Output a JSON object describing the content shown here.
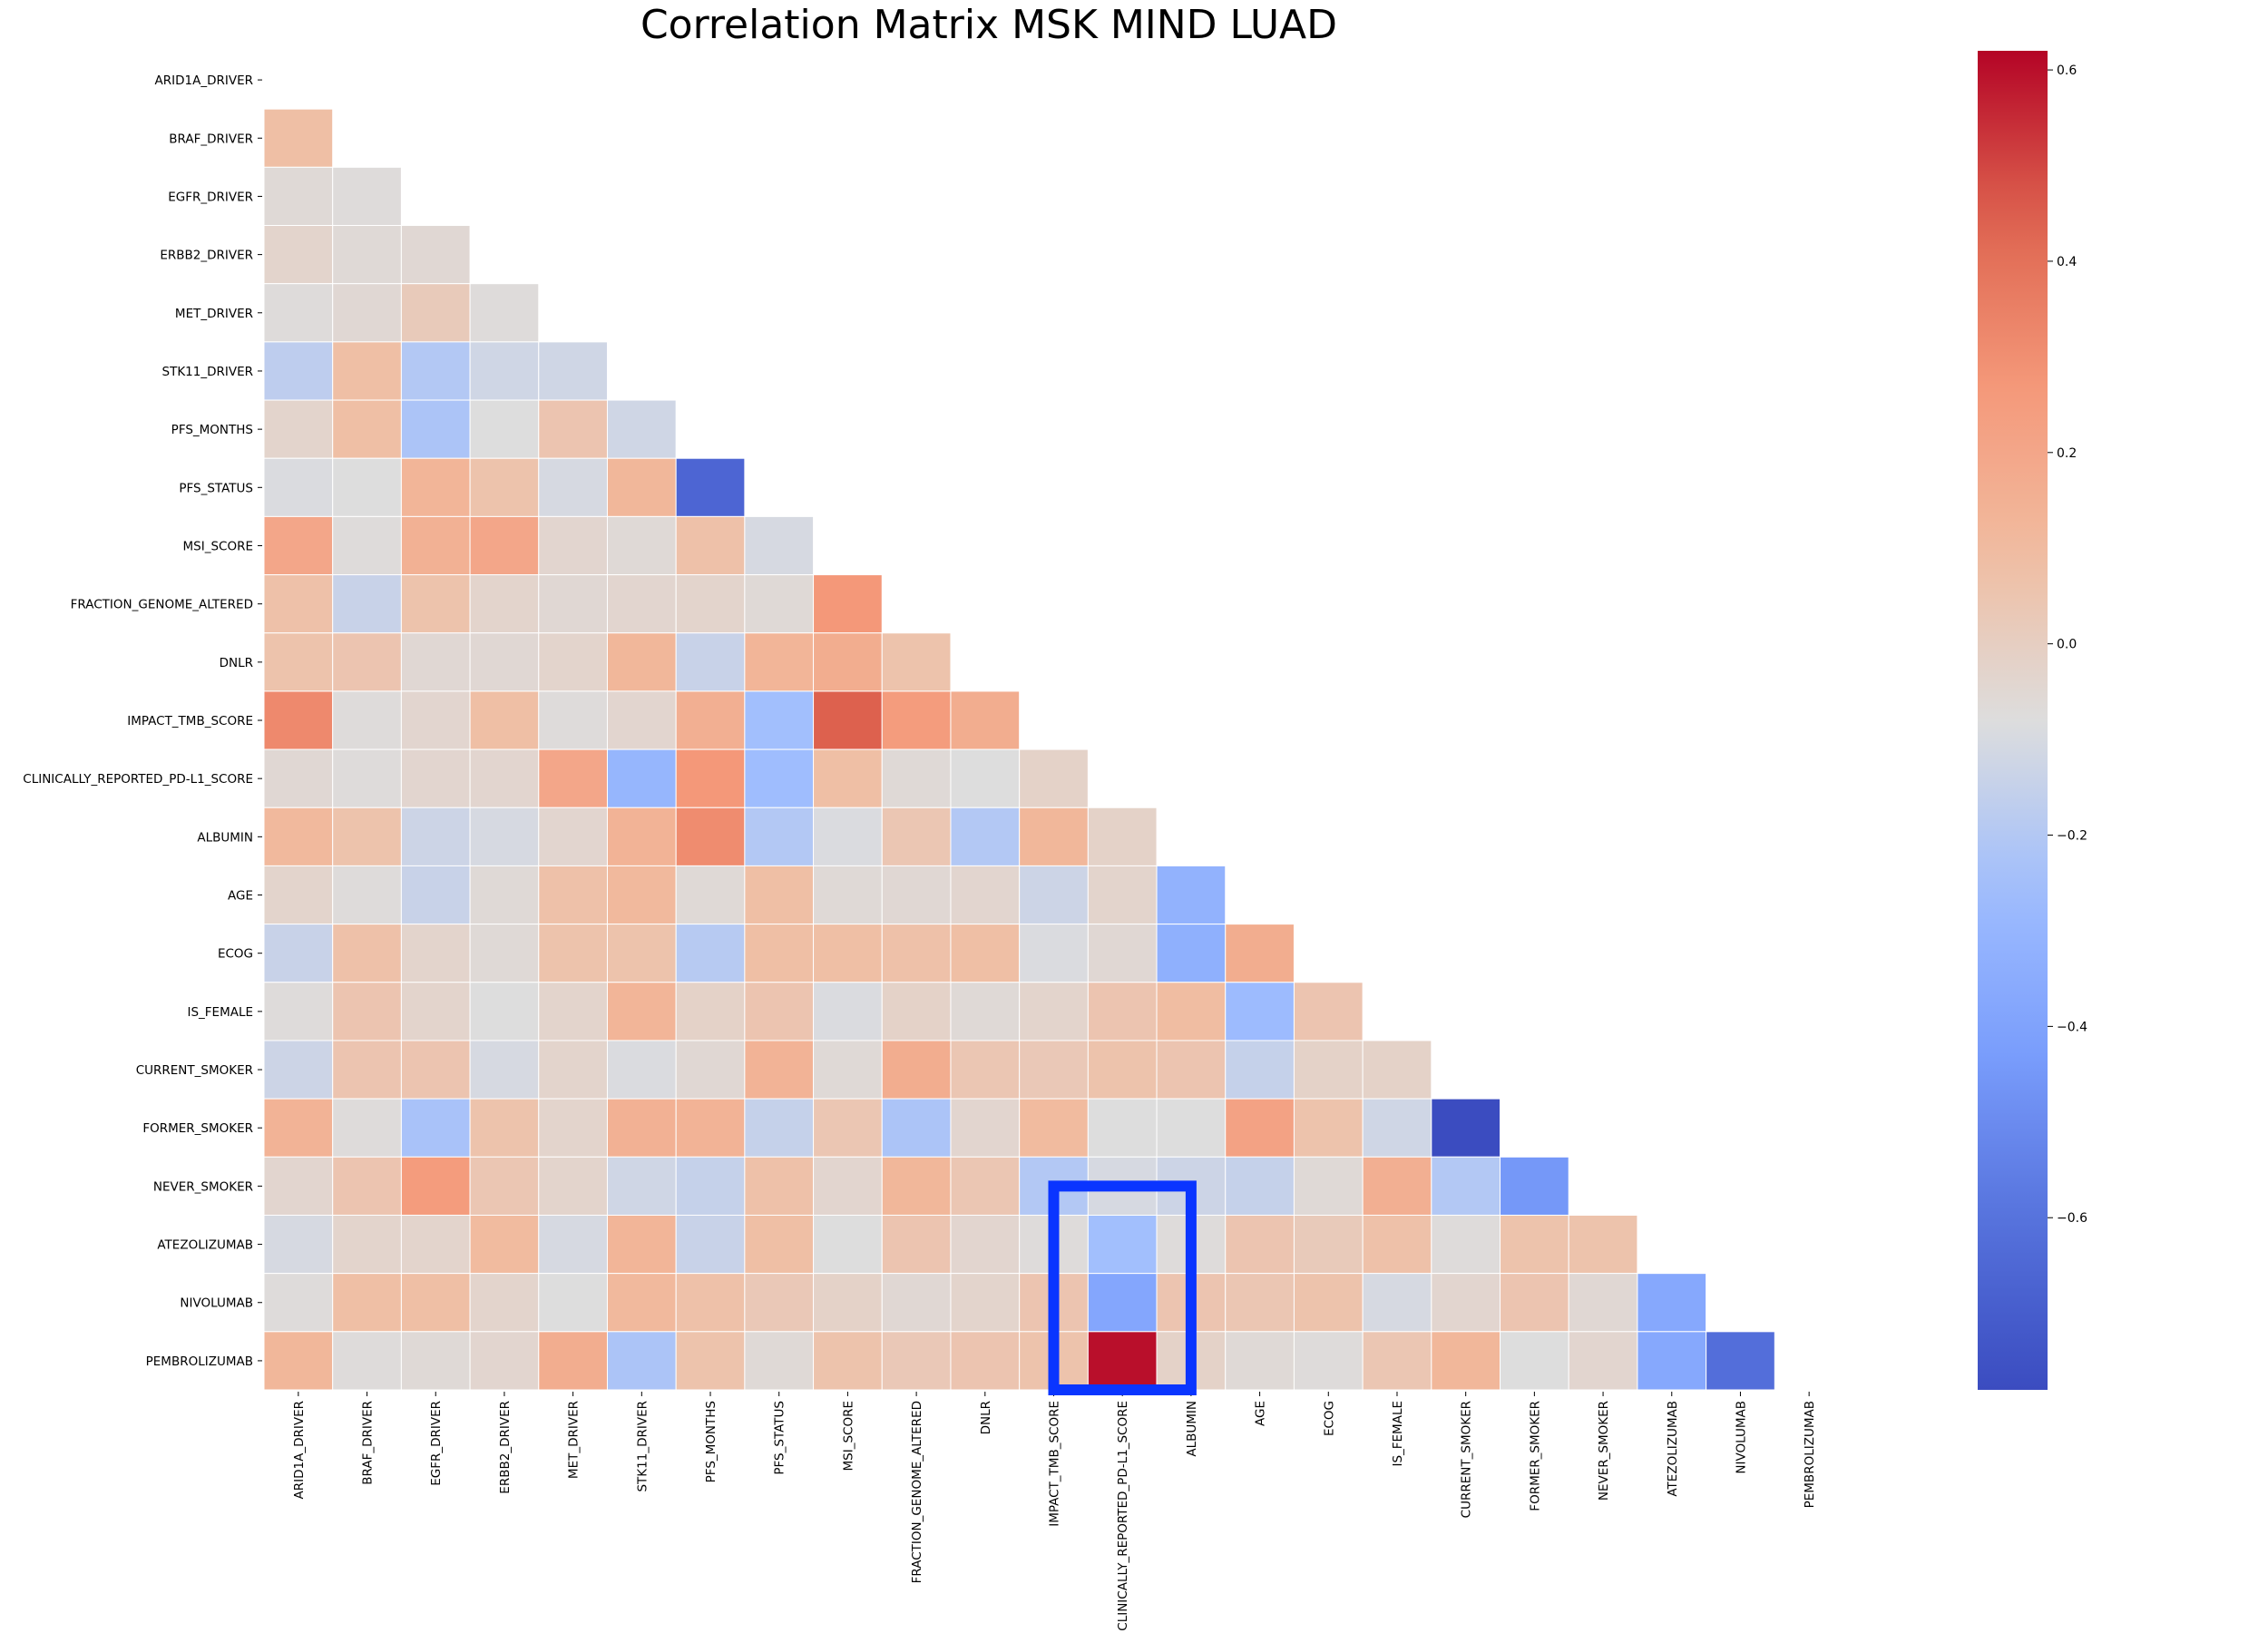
{
  "chart_data": {
    "type": "heatmap",
    "title": "Correlation Matrix MSK MIND LUAD",
    "xlabel": "",
    "ylabel": "",
    "mask": "upper-triangle-and-diagonal",
    "variables": [
      "ARID1A_DRIVER",
      "BRAF_DRIVER",
      "EGFR_DRIVER",
      "ERBB2_DRIVER",
      "MET_DRIVER",
      "STK11_DRIVER",
      "PFS_MONTHS",
      "PFS_STATUS",
      "MSI_SCORE",
      "FRACTION_GENOME_ALTERED",
      "DNLR",
      "IMPACT_TMB_SCORE",
      "CLINICALLY_REPORTED_PD-L1_SCORE",
      "ALBUMIN",
      "AGE",
      "ECOG",
      "IS_FEMALE",
      "CURRENT_SMOKER",
      "FORMER_SMOKER",
      "NEVER_SMOKER",
      "ATEZOLIZUMAB",
      "NIVOLUMAB",
      "PEMBROLIZUMAB"
    ],
    "matrix": [
      [],
      [
        0.08
      ],
      [
        -0.06,
        -0.07
      ],
      [
        -0.03,
        -0.06,
        -0.05
      ],
      [
        -0.07,
        -0.05,
        0.02,
        -0.07
      ],
      [
        -0.17,
        0.08,
        -0.2,
        -0.12,
        -0.12
      ],
      [
        -0.03,
        0.08,
        -0.22,
        -0.08,
        0.05,
        -0.12
      ],
      [
        -0.09,
        -0.08,
        0.13,
        0.06,
        -0.1,
        0.12,
        -0.66
      ],
      [
        0.2,
        -0.07,
        0.15,
        0.2,
        -0.04,
        -0.06,
        0.07,
        -0.1
      ],
      [
        0.07,
        -0.14,
        0.06,
        -0.03,
        -0.05,
        -0.04,
        -0.03,
        -0.06,
        0.27
      ],
      [
        0.06,
        0.05,
        -0.05,
        -0.05,
        -0.03,
        0.12,
        -0.14,
        0.13,
        0.17,
        0.06
      ],
      [
        0.32,
        -0.07,
        -0.04,
        0.08,
        -0.07,
        -0.04,
        0.16,
        -0.25,
        0.45,
        0.25,
        0.17
      ],
      [
        -0.05,
        -0.07,
        -0.04,
        -0.04,
        0.2,
        -0.3,
        0.27,
        -0.26,
        0.08,
        -0.06,
        -0.08,
        -0.02
      ],
      [
        0.11,
        0.06,
        -0.13,
        -0.1,
        -0.04,
        0.14,
        0.31,
        -0.2,
        -0.09,
        0.04,
        -0.2,
        0.12,
        -0.02
      ],
      [
        -0.03,
        -0.07,
        -0.14,
        -0.06,
        0.07,
        0.11,
        -0.06,
        0.08,
        -0.06,
        -0.05,
        -0.04,
        -0.13,
        -0.03,
        -0.32
      ],
      [
        -0.14,
        0.07,
        -0.03,
        -0.06,
        0.06,
        0.06,
        -0.19,
        0.08,
        0.08,
        0.07,
        0.08,
        -0.09,
        -0.05,
        -0.33,
        0.17
      ],
      [
        -0.07,
        0.05,
        -0.03,
        -0.08,
        -0.03,
        0.13,
        -0.02,
        0.05,
        -0.09,
        -0.02,
        -0.06,
        -0.03,
        0.05,
        0.09,
        -0.27,
        0.05
      ],
      [
        -0.13,
        0.05,
        0.05,
        -0.1,
        -0.03,
        -0.09,
        -0.05,
        0.14,
        -0.06,
        0.17,
        0.04,
        0.03,
        0.06,
        0.05,
        -0.15,
        -0.02,
        -0.02
      ],
      [
        0.14,
        -0.07,
        -0.23,
        0.06,
        -0.03,
        0.15,
        0.14,
        -0.15,
        0.04,
        -0.22,
        -0.04,
        0.1,
        -0.08,
        -0.08,
        0.22,
        0.06,
        -0.12,
        -0.78
      ],
      [
        -0.04,
        0.05,
        0.25,
        0.04,
        -0.03,
        -0.12,
        -0.15,
        0.07,
        -0.04,
        0.12,
        0.04,
        -0.2,
        -0.1,
        -0.13,
        -0.15,
        -0.06,
        0.16,
        -0.2,
        -0.45
      ],
      [
        -0.1,
        -0.03,
        -0.03,
        0.1,
        -0.1,
        0.13,
        -0.14,
        0.08,
        -0.08,
        0.05,
        -0.04,
        -0.07,
        -0.25,
        -0.07,
        0.05,
        0.02,
        0.07,
        -0.07,
        0.06,
        0.06
      ],
      [
        -0.07,
        0.08,
        0.08,
        -0.03,
        -0.08,
        0.11,
        0.07,
        0.03,
        -0.02,
        -0.05,
        -0.03,
        0.05,
        -0.38,
        0.05,
        0.04,
        0.06,
        -0.1,
        -0.04,
        0.05,
        -0.05,
        -0.37
      ],
      [
        0.12,
        -0.07,
        -0.06,
        -0.04,
        0.17,
        -0.22,
        0.06,
        -0.06,
        0.06,
        0.03,
        0.05,
        0.06,
        0.6,
        -0.02,
        -0.06,
        -0.07,
        0.04,
        0.12,
        -0.08,
        -0.04,
        -0.37,
        -0.62
      ]
    ],
    "colorbar": {
      "colormap": "coolwarm",
      "vmin": -0.78,
      "vmax": 0.62,
      "ticks": [
        0.6,
        0.4,
        0.2,
        0.0,
        -0.2,
        -0.4,
        -0.6
      ],
      "tick_labels": [
        "0.6",
        "0.4",
        "0.2",
        "0.0",
        "−0.2",
        "−0.4",
        "−0.6"
      ]
    },
    "highlight": {
      "color": "#0a35ff",
      "rows": [
        "NEVER_SMOKER",
        "PEMBROLIZUMAB"
      ],
      "columns": [
        "IMPACT_TMB_SCORE",
        "ALBUMIN"
      ]
    },
    "grid": false,
    "legend": "colorbar-right"
  }
}
